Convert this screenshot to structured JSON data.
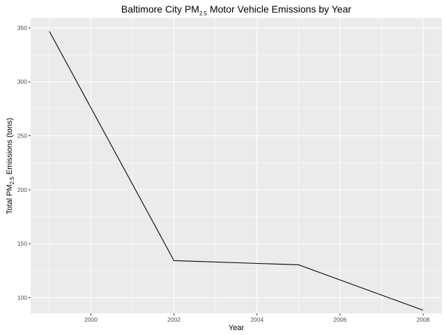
{
  "chart_data": {
    "type": "line",
    "title": {
      "prefix": "Baltimore City PM",
      "subscript": "2.5",
      "suffix": " Motor Vehicle Emissions by Year"
    },
    "xlabel": "Year",
    "ylabel": {
      "prefix": "Total PM",
      "subscript": "2.5",
      "suffix": " Emissions (tons)"
    },
    "x": [
      1999,
      2002,
      2005,
      2008
    ],
    "series": [
      {
        "values": [
          346.8,
          134.3,
          130.4,
          88.3
        ],
        "color": "#000000"
      }
    ],
    "xlim": [
      1998.55,
      2008.45
    ],
    "ylim": [
      85.4,
      359.0
    ],
    "x_ticks": [
      2000,
      2002,
      2004,
      2006,
      2008
    ],
    "x_tick_labels": [
      "2000",
      "2002",
      "2004",
      "2006",
      "2008"
    ],
    "y_ticks": [
      100,
      150,
      200,
      250,
      300,
      350
    ],
    "y_tick_labels": [
      "100",
      "150",
      "200",
      "250",
      "300",
      "350"
    ],
    "grid": true,
    "panel_background": "#ebebeb",
    "grid_color": "#ffffff"
  }
}
